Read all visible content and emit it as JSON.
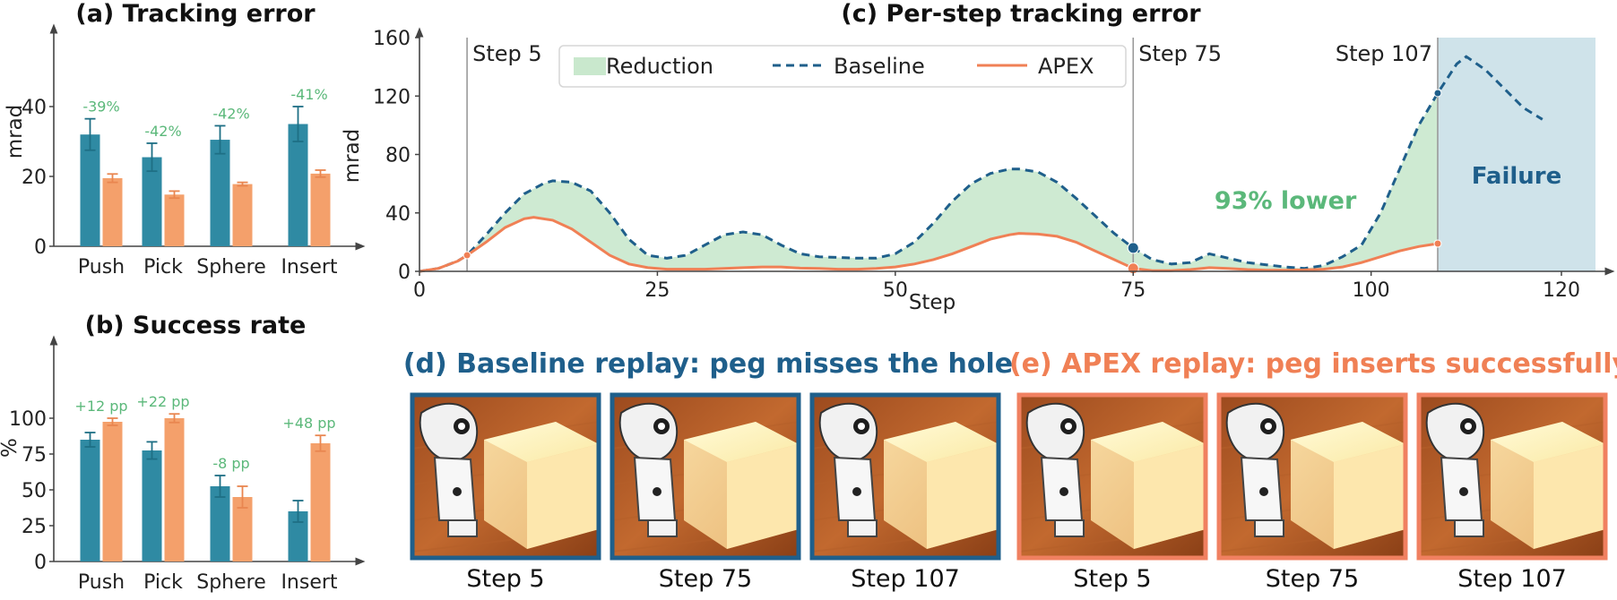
{
  "colors": {
    "baseline": "#2f8aa3",
    "apex": "#f4a06b",
    "baseline_line": "#1f5f8b",
    "apex_line": "#f08055",
    "reduction_fill": "#c9e8cd",
    "reduction_text": "#5bb87a",
    "failure_fill": "#cfe3ea",
    "failure_text": "#1f5f8b",
    "baseline_title": "#1f5f8b",
    "apex_title": "#f08055",
    "baseline_border": "#1f5f8b",
    "apex_border": "#f08060"
  },
  "chart_data": [
    {
      "id": "a",
      "type": "bar",
      "title": "(a) Tracking error",
      "ylabel": "mrad",
      "ylim": [
        0,
        56
      ],
      "yticks": [
        0,
        20,
        40
      ],
      "categories": [
        "Push",
        "Pick",
        "Sphere",
        "Insert"
      ],
      "series": [
        {
          "values": [
            32,
            25.5,
            30.5,
            35
          ],
          "errors": [
            4.5,
            4,
            4,
            5
          ]
        },
        {
          "values": [
            19.5,
            14.8,
            17.8,
            20.8
          ],
          "errors": [
            1.2,
            1,
            0.5,
            1
          ]
        }
      ],
      "annotations": [
        "-39%",
        "-42%",
        "-42%",
        "-41%"
      ]
    },
    {
      "id": "b",
      "type": "bar",
      "title": "(b) Success rate",
      "ylabel": "%",
      "ylim": [
        0,
        125
      ],
      "yticks": [
        0,
        25,
        50,
        75,
        100
      ],
      "categories": [
        "Push",
        "Pick",
        "Sphere",
        "Insert"
      ],
      "series": [
        {
          "values": [
            85,
            77.5,
            52.5,
            35
          ],
          "errors": [
            5,
            6,
            7.5,
            7.5
          ]
        },
        {
          "values": [
            97.5,
            100,
            45,
            82.5
          ],
          "errors": [
            2.5,
            3,
            7.5,
            5.5
          ]
        }
      ],
      "annotations": [
        "+12 pp",
        "+22 pp",
        "-8 pp",
        "+48 pp"
      ]
    },
    {
      "id": "c",
      "type": "line",
      "title": "(c) Per-step tracking error",
      "xlabel": "Step",
      "ylabel": "mrad",
      "xlim": [
        0,
        120
      ],
      "ylim": [
        0,
        160
      ],
      "xticks": [
        0,
        25,
        50,
        75,
        100,
        120
      ],
      "yticks": [
        0,
        40,
        80,
        120,
        160
      ],
      "legend": [
        "Reduction",
        "Baseline",
        "APEX"
      ],
      "legend_position": "top",
      "series": [
        {
          "name": "Baseline",
          "x": [
            0,
            2,
            4,
            5,
            7,
            9,
            11,
            13,
            14,
            16,
            18,
            20,
            22,
            24,
            26,
            28,
            30,
            32,
            34,
            36,
            38,
            40,
            42,
            44,
            46,
            48,
            50,
            52,
            54,
            56,
            58,
            60,
            62,
            63,
            65,
            67,
            69,
            71,
            73,
            75,
            77,
            79,
            81,
            83,
            85,
            87,
            89,
            91,
            93,
            95,
            97,
            99,
            101,
            103,
            105,
            107,
            109,
            110,
            112,
            114,
            116,
            118
          ],
          "values": [
            0,
            2,
            7,
            11,
            25,
            40,
            53,
            60,
            62,
            61,
            55,
            40,
            22,
            11,
            9,
            11,
            18,
            25,
            27,
            25,
            18,
            12,
            10,
            9.5,
            9,
            9,
            12,
            20,
            33,
            48,
            60,
            67,
            70,
            70,
            68,
            61,
            50,
            38,
            26,
            16,
            8,
            5,
            6,
            12,
            9,
            6,
            4.5,
            3,
            2,
            4,
            10,
            18,
            40,
            70,
            100,
            122,
            142,
            147,
            138,
            125,
            112,
            104
          ]
        },
        {
          "name": "APEX",
          "x": [
            0,
            2,
            4,
            5,
            7,
            9,
            11,
            12,
            14,
            16,
            18,
            20,
            22,
            24,
            26,
            28,
            30,
            32,
            34,
            36,
            38,
            40,
            42,
            44,
            46,
            48,
            50,
            52,
            54,
            56,
            58,
            60,
            62,
            63,
            65,
            67,
            69,
            71,
            73,
            75,
            77,
            79,
            81,
            83,
            85,
            87,
            89,
            91,
            93,
            95,
            97,
            99,
            101,
            103,
            105,
            107
          ],
          "values": [
            0,
            2,
            7,
            11,
            20,
            30,
            36,
            37,
            35,
            29,
            20,
            11,
            5,
            2.5,
            1.5,
            1.5,
            1.5,
            2,
            2.5,
            3,
            3,
            2.2,
            2,
            1.5,
            1.5,
            2,
            3,
            5,
            8,
            12,
            17,
            22,
            25,
            26,
            25.5,
            24,
            20,
            14,
            8,
            2,
            0.5,
            0.5,
            1.2,
            2.5,
            2,
            1.2,
            0.8,
            0.8,
            1,
            1.5,
            3,
            6,
            10,
            14,
            17,
            19
          ]
        }
      ],
      "markers": [
        {
          "series": "APEX",
          "x": 5,
          "y": 11
        },
        {
          "series": "Baseline",
          "x": 75,
          "y": 16
        },
        {
          "series": "APEX",
          "x": 75,
          "y": 2
        },
        {
          "series": "Baseline",
          "x": 107,
          "y": 122
        },
        {
          "series": "APEX",
          "x": 107,
          "y": 19
        }
      ],
      "vlines": [
        {
          "x": 5,
          "label": "Step 5"
        },
        {
          "x": 75,
          "label": "Step 75"
        },
        {
          "x": 107,
          "label": "Step 107"
        }
      ],
      "failure_region": {
        "x_start": 107,
        "label": "Failure"
      },
      "reduction_label": "93% lower"
    }
  ],
  "replays": {
    "baseline_title": "(d) Baseline replay: peg misses the hole",
    "apex_title": "(e) APEX replay: peg inserts successfully",
    "baseline_frames": [
      "Step 5",
      "Step 75",
      "Step 107"
    ],
    "apex_frames": [
      "Step 5",
      "Step 75",
      "Step 107"
    ]
  }
}
